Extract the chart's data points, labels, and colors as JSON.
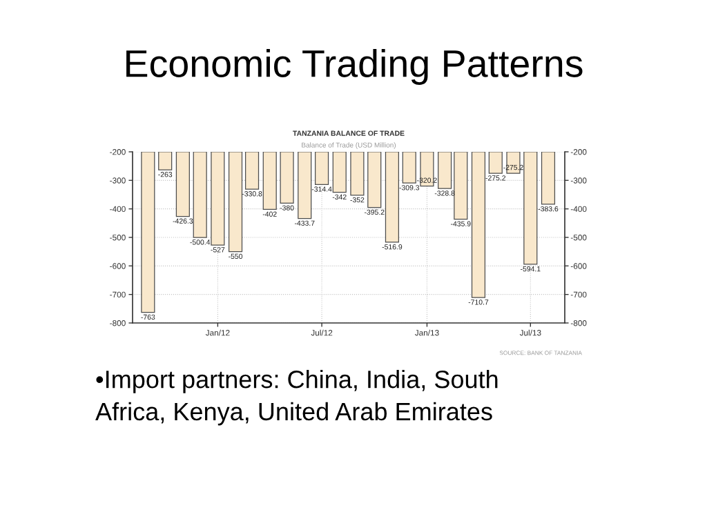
{
  "chart_data": {
    "type": "bar",
    "title": "Economic Trading Patterns",
    "subtitle": "TANZANIA BALANCE OF TRADE",
    "x": [
      "2011-09",
      "2011-10",
      "2011-11",
      "2011-12",
      "2012-01",
      "2012-02",
      "2012-03",
      "2012-04",
      "2012-05",
      "2012-06",
      "2012-07",
      "2012-08",
      "2012-09",
      "2012-10",
      "2012-11",
      "2012-12",
      "2013-01",
      "2013-02",
      "2013-03",
      "2013-04",
      "2013-05",
      "2013-06",
      "2013-07",
      "2013-08"
    ],
    "values": [
      -763,
      -263,
      -426.3,
      -500.4,
      -527,
      -550,
      -330.8,
      -402,
      -380,
      -433.7,
      -314.4,
      -342,
      -352,
      -395.2,
      -516.9,
      -309.3,
      -320.2,
      -328.8,
      -435.9,
      -710.7,
      -275.2,
      -275.2,
      -594.1,
      -383.6
    ],
    "color": "#f9e8cc",
    "xlim": [
      "2011-08-05",
      "2013-08-30"
    ],
    "xticks": [
      {
        "value": "2012-01",
        "label": "Jan/12"
      },
      {
        "value": "2012-07",
        "label": "Jul/12"
      },
      {
        "value": "2013-01",
        "label": "Jan/13"
      },
      {
        "value": "2013-07",
        "label": "Jul/13"
      }
    ],
    "ylim": [
      -800,
      -200
    ],
    "yticks": [
      -800,
      -700,
      -600,
      -500,
      -400,
      -300,
      -200
    ],
    "y2lim": [
      -800,
      -200
    ],
    "y2ticks": [
      -800,
      -700,
      -600,
      -500,
      -400,
      -300,
      -200
    ],
    "grid": true,
    "data_labels": true,
    "annotations": [
      "Balance of Trade (USD Million)",
      "SOURCE: BANK OF TANZANIA",
      "•Import partners: China, India, South Africa, Kenya, United Arab Emirates"
    ]
  }
}
